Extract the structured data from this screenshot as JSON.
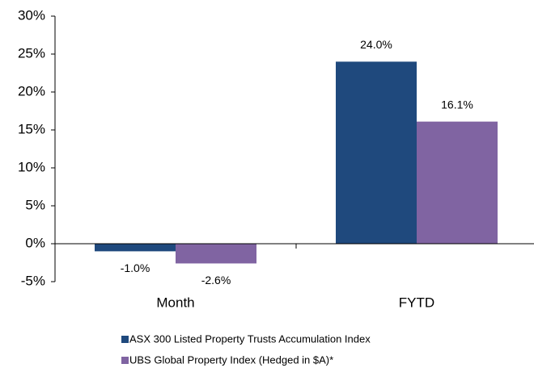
{
  "chart_data": {
    "type": "bar",
    "categories": [
      "Month",
      "FYTD"
    ],
    "series": [
      {
        "name": "ASX 300 Listed Property Trusts Accumulation Index",
        "color": "#1f497d",
        "values": [
          -1.0,
          24.0
        ],
        "value_labels": [
          "-1.0%",
          "24.0%"
        ]
      },
      {
        "name": "UBS Global Property Index (Hedged in $A)*",
        "color": "#8064a2",
        "values": [
          -2.6,
          16.1
        ],
        "value_labels": [
          "-2.6%",
          "16.1%"
        ]
      }
    ],
    "ylim": [
      -5,
      30
    ],
    "yticks": [
      {
        "value": -5,
        "label": "-5%"
      },
      {
        "value": 0,
        "label": "0%"
      },
      {
        "value": 5,
        "label": "5%"
      },
      {
        "value": 10,
        "label": "10%"
      },
      {
        "value": 15,
        "label": "15%"
      },
      {
        "value": 20,
        "label": "20%"
      },
      {
        "value": 25,
        "label": "25%"
      },
      {
        "value": 30,
        "label": "30%"
      }
    ],
    "grid": false,
    "legend": "bottom"
  }
}
